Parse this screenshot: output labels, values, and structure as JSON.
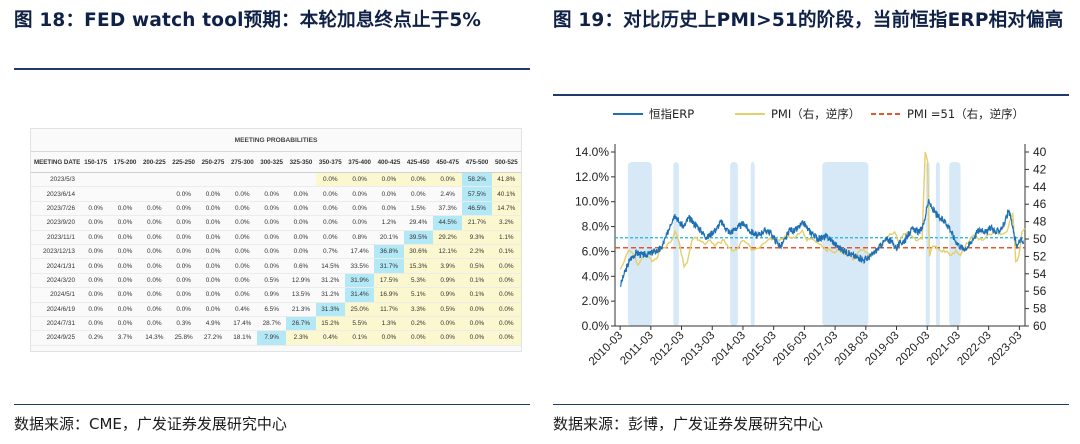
{
  "figure1": {
    "title": "图 18：FED watch tool预期：本轮加息终点止于5%",
    "source": "数据来源：CME，广发证券发展研究中心",
    "table": {
      "super_header": "MEETING PROBABILITIES",
      "columns": [
        "MEETING DATE",
        "150-175",
        "175-200",
        "200-225",
        "225-250",
        "250-275",
        "275-300",
        "300-325",
        "325-350",
        "350-375",
        "375-400",
        "400-425",
        "425-450",
        "450-475",
        "475-500",
        "500-525"
      ],
      "rows": [
        {
          "date": "2023/5/3",
          "cells": [
            "",
            "",
            "",
            "",
            "",
            "",
            "",
            "",
            "0.0%",
            "0.0%",
            "0.0%",
            "0.0%",
            "0.0%",
            "58.2%",
            "41.8%"
          ]
        },
        {
          "date": "2023/6/14",
          "cells": [
            "",
            "",
            "",
            "0.0%",
            "0.0%",
            "0.0%",
            "0.0%",
            "0.0%",
            "0.0%",
            "0.0%",
            "0.0%",
            "0.0%",
            "2.4%",
            "57.5%",
            "40.1%"
          ]
        },
        {
          "date": "2023/7/26",
          "cells": [
            "0.0%",
            "0.0%",
            "0.0%",
            "0.0%",
            "0.0%",
            "0.0%",
            "0.0%",
            "0.0%",
            "0.0%",
            "0.0%",
            "0.0%",
            "1.5%",
            "37.3%",
            "46.5%",
            "14.7%"
          ]
        },
        {
          "date": "2023/9/20",
          "cells": [
            "0.0%",
            "0.0%",
            "0.0%",
            "0.0%",
            "0.0%",
            "0.0%",
            "0.0%",
            "0.0%",
            "0.0%",
            "0.0%",
            "1.2%",
            "29.4%",
            "44.5%",
            "21.7%",
            "3.2%"
          ]
        },
        {
          "date": "2023/11/1",
          "cells": [
            "0.0%",
            "0.0%",
            "0.0%",
            "0.0%",
            "0.0%",
            "0.0%",
            "0.0%",
            "0.0%",
            "0.0%",
            "0.8%",
            "20.1%",
            "39.5%",
            "29.2%",
            "9.3%",
            "1.1%"
          ]
        },
        {
          "date": "2023/12/13",
          "cells": [
            "0.0%",
            "0.0%",
            "0.0%",
            "0.0%",
            "0.0%",
            "0.0%",
            "0.0%",
            "0.0%",
            "0.7%",
            "17.4%",
            "36.8%",
            "30.6%",
            "12.1%",
            "2.2%",
            "0.1%"
          ]
        },
        {
          "date": "2024/1/31",
          "cells": [
            "0.0%",
            "0.0%",
            "0.0%",
            "0.0%",
            "0.0%",
            "0.0%",
            "0.0%",
            "0.6%",
            "14.5%",
            "33.5%",
            "31.7%",
            "15.3%",
            "3.9%",
            "0.5%",
            "0.0%"
          ]
        },
        {
          "date": "2024/3/20",
          "cells": [
            "0.0%",
            "0.0%",
            "0.0%",
            "0.0%",
            "0.0%",
            "0.0%",
            "0.5%",
            "12.9%",
            "31.2%",
            "31.9%",
            "17.5%",
            "5.3%",
            "0.9%",
            "0.1%",
            "0.0%"
          ]
        },
        {
          "date": "2024/5/1",
          "cells": [
            "0.0%",
            "0.0%",
            "0.0%",
            "0.0%",
            "0.0%",
            "0.0%",
            "0.9%",
            "13.5%",
            "31.2%",
            "31.4%",
            "16.9%",
            "5.1%",
            "0.9%",
            "0.1%",
            "0.0%"
          ]
        },
        {
          "date": "2024/6/19",
          "cells": [
            "0.0%",
            "0.0%",
            "0.0%",
            "0.0%",
            "0.0%",
            "0.4%",
            "6.5%",
            "21.3%",
            "31.3%",
            "25.0%",
            "11.7%",
            "3.3%",
            "0.5%",
            "0.0%",
            "0.0%"
          ]
        },
        {
          "date": "2024/7/31",
          "cells": [
            "0.0%",
            "0.0%",
            "0.0%",
            "0.3%",
            "4.9%",
            "17.4%",
            "28.7%",
            "26.7%",
            "15.2%",
            "5.5%",
            "1.3%",
            "0.2%",
            "0.0%",
            "0.0%",
            "0.0%"
          ]
        },
        {
          "date": "2024/9/25",
          "cells": [
            "0.2%",
            "3.7%",
            "14.3%",
            "25.8%",
            "27.2%",
            "18.1%",
            "7.9%",
            "2.3%",
            "0.4%",
            "0.1%",
            "0.0%",
            "0.0%",
            "0.0%",
            "0.0%",
            "0.0%"
          ]
        }
      ],
      "max_col": [
        13,
        13,
        13,
        12,
        11,
        10,
        10,
        9,
        9,
        8,
        7,
        6,
        8,
        6,
        4
      ],
      "highlight_blue": "#b3e8f7",
      "highlight_yellow": "#fbf7cf"
    }
  },
  "figure2": {
    "title": "图 19：对比历史上PMI>51的阶段，当前恒指ERP相对偏高",
    "source": "数据来源：彭博，广发证券发展研究中心",
    "chart_data": {
      "type": "line",
      "legend": [
        "恒指ERP",
        "PMI（右，逆序）",
        "PMI =51（右，逆序）"
      ],
      "colors": {
        "erp": "#1f6fb2",
        "pmi": "#e5cf6a",
        "pmi51": "#e0582b",
        "shade": "#d7e9f7",
        "erp_ref": "#1fb3d6"
      },
      "x_range": [
        2010.0,
        2023.35
      ],
      "x_ticks": [
        "2010-03",
        "2011-03",
        "2012-03",
        "2013-03",
        "2014-03",
        "2015-03",
        "2016-03",
        "2017-03",
        "2018-03",
        "2019-03",
        "2020-03",
        "2021-03",
        "2022-03",
        "2023-03"
      ],
      "y_left": {
        "min": 0,
        "max": 14,
        "step": 2,
        "ticks": [
          "0.0%",
          "2.0%",
          "4.0%",
          "6.0%",
          "8.0%",
          "10.0%",
          "12.0%",
          "14.0%"
        ]
      },
      "y_right": {
        "min": 40,
        "max": 60,
        "step": 2,
        "inverted": true,
        "ticks": [
          "40",
          "42",
          "44",
          "46",
          "48",
          "50",
          "52",
          "54",
          "56",
          "58",
          "60"
        ]
      },
      "erp_reference_value": 7.1,
      "pmi51_value": 51,
      "pmi_above_51_periods": [
        [
          2010.42,
          2011.2
        ],
        [
          2011.9,
          2012.08
        ],
        [
          2013.75,
          2014.0
        ],
        [
          2014.42,
          2014.55
        ],
        [
          2016.75,
          2018.25
        ],
        [
          2020.12,
          2020.25
        ],
        [
          2020.45,
          2020.58
        ],
        [
          2020.88,
          2021.25
        ]
      ],
      "erp": [
        [
          2010.17,
          3.2
        ],
        [
          2010.3,
          4.2
        ],
        [
          2010.5,
          5.4
        ],
        [
          2010.7,
          5.9
        ],
        [
          2010.9,
          5.7
        ],
        [
          2011.1,
          5.8
        ],
        [
          2011.3,
          6.0
        ],
        [
          2011.5,
          6.2
        ],
        [
          2011.7,
          7.4
        ],
        [
          2011.8,
          8.2
        ],
        [
          2011.95,
          9.0
        ],
        [
          2012.1,
          8.3
        ],
        [
          2012.25,
          8.0
        ],
        [
          2012.4,
          8.7
        ],
        [
          2012.55,
          8.3
        ],
        [
          2012.7,
          8.0
        ],
        [
          2012.85,
          7.5
        ],
        [
          2013.0,
          7.1
        ],
        [
          2013.15,
          7.5
        ],
        [
          2013.3,
          7.8
        ],
        [
          2013.45,
          8.4
        ],
        [
          2013.6,
          7.9
        ],
        [
          2013.75,
          7.5
        ],
        [
          2013.9,
          7.8
        ],
        [
          2014.05,
          8.0
        ],
        [
          2014.2,
          8.3
        ],
        [
          2014.35,
          7.7
        ],
        [
          2014.5,
          7.5
        ],
        [
          2014.65,
          7.2
        ],
        [
          2014.8,
          7.6
        ],
        [
          2014.95,
          7.7
        ],
        [
          2015.1,
          7.4
        ],
        [
          2015.25,
          6.8
        ],
        [
          2015.4,
          6.4
        ],
        [
          2015.55,
          7.0
        ],
        [
          2015.7,
          7.8
        ],
        [
          2015.85,
          7.6
        ],
        [
          2016.0,
          8.0
        ],
        [
          2016.15,
          8.3
        ],
        [
          2016.3,
          7.7
        ],
        [
          2016.45,
          7.4
        ],
        [
          2016.6,
          7.0
        ],
        [
          2016.75,
          7.1
        ],
        [
          2016.9,
          7.2
        ],
        [
          2017.05,
          6.9
        ],
        [
          2017.2,
          6.5
        ],
        [
          2017.35,
          6.2
        ],
        [
          2017.5,
          6.0
        ],
        [
          2017.65,
          5.8
        ],
        [
          2017.8,
          5.6
        ],
        [
          2017.95,
          5.5
        ],
        [
          2018.1,
          5.3
        ],
        [
          2018.25,
          5.5
        ],
        [
          2018.4,
          5.8
        ],
        [
          2018.55,
          6.2
        ],
        [
          2018.7,
          6.6
        ],
        [
          2018.85,
          7.0
        ],
        [
          2019.0,
          6.8
        ],
        [
          2019.15,
          6.3
        ],
        [
          2019.3,
          6.7
        ],
        [
          2019.45,
          6.9
        ],
        [
          2019.6,
          7.6
        ],
        [
          2019.75,
          7.8
        ],
        [
          2019.9,
          7.5
        ],
        [
          2020.05,
          8.2
        ],
        [
          2020.2,
          10.0
        ],
        [
          2020.3,
          9.6
        ],
        [
          2020.45,
          9.0
        ],
        [
          2020.6,
          8.6
        ],
        [
          2020.75,
          8.4
        ],
        [
          2020.9,
          7.9
        ],
        [
          2021.05,
          7.0
        ],
        [
          2021.2,
          6.5
        ],
        [
          2021.35,
          6.2
        ],
        [
          2021.5,
          6.4
        ],
        [
          2021.65,
          7.0
        ],
        [
          2021.8,
          7.6
        ],
        [
          2021.95,
          7.8
        ],
        [
          2022.1,
          7.5
        ],
        [
          2022.25,
          8.0
        ],
        [
          2022.4,
          7.5
        ],
        [
          2022.55,
          7.8
        ],
        [
          2022.7,
          8.3
        ],
        [
          2022.8,
          9.2
        ],
        [
          2022.9,
          8.6
        ],
        [
          2023.0,
          7.2
        ],
        [
          2023.1,
          6.4
        ],
        [
          2023.2,
          7.0
        ],
        [
          2023.3,
          6.6
        ]
      ],
      "pmi": [
        [
          2010.17,
          53.5
        ],
        [
          2010.3,
          52.6
        ],
        [
          2010.45,
          51.3
        ],
        [
          2010.6,
          51.7
        ],
        [
          2010.75,
          53.0
        ],
        [
          2010.9,
          52.1
        ],
        [
          2011.05,
          51.8
        ],
        [
          2011.2,
          52.6
        ],
        [
          2011.35,
          52.3
        ],
        [
          2011.5,
          51.1
        ],
        [
          2011.65,
          51.0
        ],
        [
          2011.8,
          50.4
        ],
        [
          2011.95,
          49.1
        ],
        [
          2012.1,
          50.5
        ],
        [
          2012.25,
          53.2
        ],
        [
          2012.35,
          52.7
        ],
        [
          2012.5,
          50.2
        ],
        [
          2012.65,
          49.8
        ],
        [
          2012.8,
          50.3
        ],
        [
          2012.95,
          50.6
        ],
        [
          2013.1,
          50.1
        ],
        [
          2013.25,
          50.8
        ],
        [
          2013.4,
          50.4
        ],
        [
          2013.55,
          50.1
        ],
        [
          2013.7,
          51.0
        ],
        [
          2013.85,
          51.4
        ],
        [
          2014.0,
          51.0
        ],
        [
          2014.15,
          50.2
        ],
        [
          2014.3,
          50.5
        ],
        [
          2014.45,
          51.3
        ],
        [
          2014.6,
          51.1
        ],
        [
          2014.75,
          50.8
        ],
        [
          2014.9,
          50.4
        ],
        [
          2015.05,
          49.9
        ],
        [
          2015.2,
          50.1
        ],
        [
          2015.35,
          50.2
        ],
        [
          2015.5,
          49.8
        ],
        [
          2015.65,
          49.7
        ],
        [
          2015.8,
          49.8
        ],
        [
          2015.95,
          49.4
        ],
        [
          2016.1,
          49.0
        ],
        [
          2016.25,
          50.2
        ],
        [
          2016.4,
          50.0
        ],
        [
          2016.55,
          50.4
        ],
        [
          2016.7,
          50.6
        ],
        [
          2016.85,
          51.2
        ],
        [
          2017.0,
          51.3
        ],
        [
          2017.15,
          51.6
        ],
        [
          2017.3,
          51.2
        ],
        [
          2017.45,
          51.7
        ],
        [
          2017.6,
          51.4
        ],
        [
          2017.75,
          52.4
        ],
        [
          2017.9,
          51.6
        ],
        [
          2018.05,
          51.3
        ],
        [
          2018.2,
          51.5
        ],
        [
          2018.35,
          51.9
        ],
        [
          2018.5,
          51.2
        ],
        [
          2018.65,
          50.8
        ],
        [
          2018.8,
          50.2
        ],
        [
          2018.95,
          49.4
        ],
        [
          2019.1,
          49.2
        ],
        [
          2019.25,
          50.5
        ],
        [
          2019.4,
          49.4
        ],
        [
          2019.55,
          49.5
        ],
        [
          2019.7,
          49.8
        ],
        [
          2019.85,
          50.2
        ],
        [
          2020.0,
          50.0
        ],
        [
          2020.1,
          40.0
        ],
        [
          2020.18,
          41.0
        ],
        [
          2020.24,
          52.0
        ],
        [
          2020.35,
          50.8
        ],
        [
          2020.5,
          51.1
        ],
        [
          2020.65,
          51.5
        ],
        [
          2020.8,
          51.4
        ],
        [
          2020.95,
          51.9
        ],
        [
          2021.1,
          51.3
        ],
        [
          2021.25,
          51.9
        ],
        [
          2021.4,
          50.9
        ],
        [
          2021.55,
          50.1
        ],
        [
          2021.7,
          49.6
        ],
        [
          2021.85,
          50.1
        ],
        [
          2022.0,
          50.1
        ],
        [
          2022.15,
          49.5
        ],
        [
          2022.3,
          49.3
        ],
        [
          2022.45,
          49.2
        ],
        [
          2022.6,
          49.4
        ],
        [
          2022.75,
          49.2
        ],
        [
          2022.85,
          48.0
        ],
        [
          2022.95,
          47.0
        ],
        [
          2023.05,
          52.6
        ],
        [
          2023.15,
          51.9
        ],
        [
          2023.25,
          49.2
        ],
        [
          2023.35,
          48.8
        ]
      ]
    }
  }
}
